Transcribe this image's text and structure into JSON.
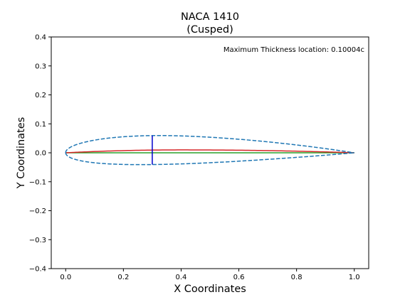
{
  "chart_data": {
    "type": "line",
    "title": "NACA 1410",
    "subtitle": "(Cusped)",
    "xlabel": "X Coordinates",
    "ylabel": "Y Coordinates",
    "xlim": [
      -0.05,
      1.05
    ],
    "ylim": [
      -0.4,
      0.4
    ],
    "xticks": [
      0.0,
      0.2,
      0.4,
      0.6,
      0.8,
      1.0
    ],
    "xtick_labels": [
      "0.0",
      "0.2",
      "0.4",
      "0.6",
      "0.8",
      "1.0"
    ],
    "yticks": [
      -0.4,
      -0.3,
      -0.2,
      -0.1,
      0.0,
      0.1,
      0.2,
      0.3,
      0.4
    ],
    "ytick_labels": [
      "−0.4",
      "−0.3",
      "−0.2",
      "−0.1",
      "0.0",
      "0.1",
      "0.2",
      "0.3",
      "0.4"
    ],
    "grid": false,
    "annotation": "Maximum Thickness location: 0.10004c",
    "airfoil": {
      "max_camber": 0.01,
      "camber_position": 0.4,
      "thickness": 0.1,
      "max_thickness_x": 0.3
    },
    "series": [
      {
        "name": "upper-surface",
        "color": "#1f77b4",
        "style": "dashed"
      },
      {
        "name": "lower-surface",
        "color": "#1f77b4",
        "style": "dashed"
      },
      {
        "name": "camber-line",
        "color": "#d62728",
        "style": "solid"
      },
      {
        "name": "chord-line",
        "color": "#2ca02c",
        "style": "solid"
      },
      {
        "name": "max-thickness-line",
        "color": "#0000cc",
        "style": "solid"
      }
    ]
  }
}
